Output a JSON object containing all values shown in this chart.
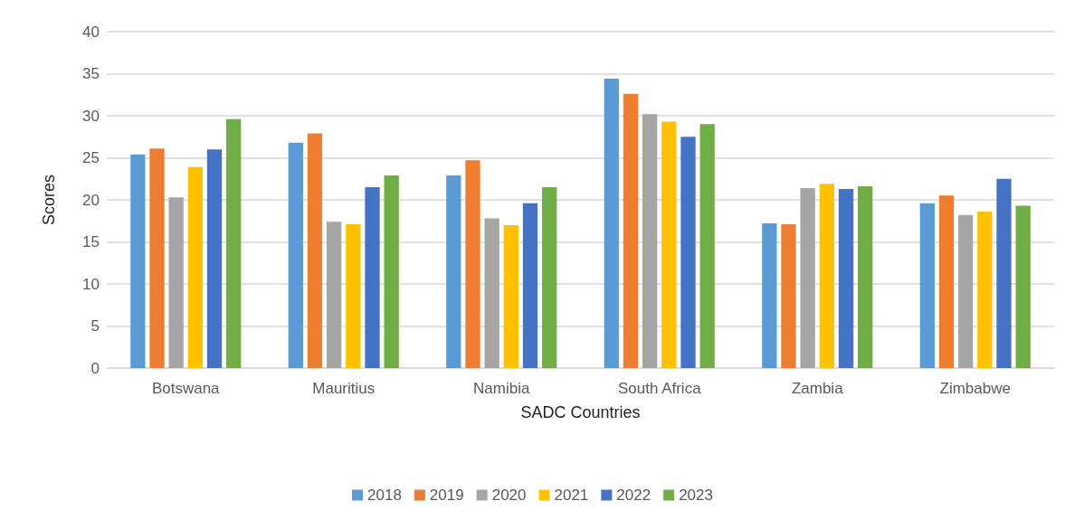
{
  "chart_data": {
    "type": "bar",
    "xlabel": "SADC Countries",
    "ylabel": "Scores",
    "categories": [
      "Botswana",
      "Mauritius",
      "Namibia",
      "South Africa",
      "Zambia",
      "Zimbabwe"
    ],
    "series": [
      {
        "name": "2018",
        "color": "#5b9bd5",
        "values": [
          25.4,
          26.8,
          22.9,
          34.4,
          17.2,
          19.6
        ]
      },
      {
        "name": "2019",
        "color": "#ed7d31",
        "values": [
          26.1,
          27.9,
          24.7,
          32.6,
          17.1,
          20.5
        ]
      },
      {
        "name": "2020",
        "color": "#a5a5a5",
        "values": [
          20.3,
          17.4,
          17.8,
          30.2,
          21.4,
          18.2
        ]
      },
      {
        "name": "2021",
        "color": "#ffc000",
        "values": [
          23.9,
          17.1,
          17.0,
          29.3,
          21.9,
          18.6
        ]
      },
      {
        "name": "2022",
        "color": "#4472c4",
        "values": [
          26.0,
          21.5,
          19.6,
          27.5,
          21.3,
          22.5
        ]
      },
      {
        "name": "2023",
        "color": "#70ad47",
        "values": [
          29.6,
          22.9,
          21.5,
          29.0,
          21.6,
          19.3
        ]
      }
    ],
    "ylim": [
      0,
      40
    ],
    "yticks": [
      0,
      5,
      10,
      15,
      20,
      25,
      30,
      35,
      40
    ],
    "grid": "y",
    "legend": "bottom"
  }
}
